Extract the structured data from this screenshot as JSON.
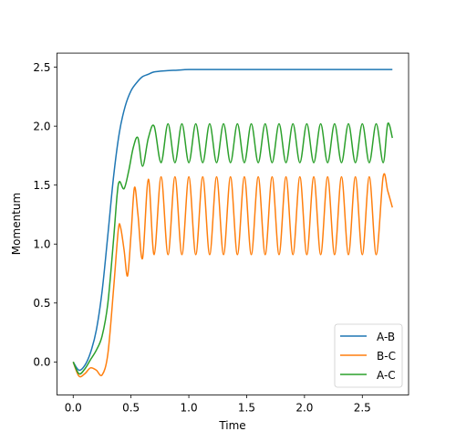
{
  "chart_data": {
    "type": "line",
    "title": "",
    "xlabel": "Time",
    "ylabel": "Momentum",
    "xlim": [
      -0.14,
      2.9
    ],
    "ylim": [
      -0.28,
      2.62
    ],
    "xticks": [
      "0.0",
      "0.5",
      "1.0",
      "1.5",
      "2.0",
      "2.5"
    ],
    "yticks": [
      "0.0",
      "0.5",
      "1.0",
      "1.5",
      "2.0",
      "2.5"
    ],
    "grid": false,
    "legend_position": "lower-right",
    "series": [
      {
        "name": "A-B",
        "color": "#1f77b4",
        "x": [
          0,
          0.05,
          0.1,
          0.15,
          0.2,
          0.25,
          0.3,
          0.35,
          0.4,
          0.45,
          0.5,
          0.55,
          0.6,
          0.65,
          0.7,
          0.8,
          0.9,
          1.0,
          1.2,
          1.5,
          2.0,
          2.5,
          2.76
        ],
        "y": [
          0.0,
          -0.07,
          -0.03,
          0.08,
          0.27,
          0.6,
          1.08,
          1.58,
          1.95,
          2.17,
          2.3,
          2.37,
          2.42,
          2.44,
          2.46,
          2.47,
          2.475,
          2.48,
          2.48,
          2.48,
          2.48,
          2.48,
          2.48
        ]
      },
      {
        "name": "B-C",
        "color": "#ff7f0e",
        "oscillation": {
          "center": 1.24,
          "amplitude": 0.33,
          "period": 0.117,
          "start": 0.35,
          "tail_end": 1.31
        },
        "x": [
          0,
          0.05,
          0.1,
          0.15,
          0.2,
          0.25,
          0.3,
          0.35,
          0.39,
          0.41,
          0.44,
          0.47,
          0.5,
          0.53,
          0.56,
          0.6,
          0.65,
          0.7,
          0.76,
          0.82,
          0.88,
          0.94,
          1.0,
          1.06,
          1.12,
          1.18,
          1.24,
          1.3,
          1.36,
          1.42,
          1.48,
          1.54,
          1.6,
          1.66,
          1.72,
          1.78,
          1.84,
          1.9,
          1.96,
          2.02,
          2.08,
          2.14,
          2.2,
          2.26,
          2.32,
          2.38,
          2.44,
          2.5,
          2.56,
          2.62,
          2.68,
          2.72,
          2.76
        ],
        "y": [
          0.0,
          -0.12,
          -0.1,
          -0.05,
          -0.07,
          -0.11,
          0.07,
          0.63,
          1.12,
          1.14,
          0.95,
          0.73,
          1.08,
          1.48,
          1.25,
          0.88,
          1.55,
          0.91,
          1.57,
          0.91,
          1.57,
          0.91,
          1.57,
          0.91,
          1.57,
          0.91,
          1.57,
          0.91,
          1.57,
          0.91,
          1.57,
          0.91,
          1.57,
          0.91,
          1.57,
          0.91,
          1.57,
          0.91,
          1.57,
          0.91,
          1.57,
          0.91,
          1.57,
          0.91,
          1.57,
          0.91,
          1.57,
          0.91,
          1.57,
          0.91,
          1.57,
          1.45,
          1.31
        ]
      },
      {
        "name": "A-C",
        "color": "#2ca02c",
        "x": [
          0,
          0.05,
          0.1,
          0.15,
          0.2,
          0.25,
          0.3,
          0.35,
          0.38,
          0.4,
          0.44,
          0.48,
          0.52,
          0.56,
          0.6,
          0.65,
          0.7,
          0.76,
          0.82,
          0.88,
          0.94,
          1.0,
          1.06,
          1.12,
          1.18,
          1.24,
          1.3,
          1.36,
          1.42,
          1.48,
          1.54,
          1.6,
          1.66,
          1.72,
          1.78,
          1.84,
          1.9,
          1.96,
          2.02,
          2.08,
          2.14,
          2.2,
          2.26,
          2.32,
          2.38,
          2.44,
          2.5,
          2.56,
          2.62,
          2.68,
          2.72,
          2.76
        ],
        "y": [
          0.0,
          -0.1,
          -0.06,
          0.02,
          0.1,
          0.22,
          0.5,
          1.05,
          1.42,
          1.53,
          1.47,
          1.62,
          1.82,
          1.9,
          1.66,
          1.9,
          2.0,
          1.69,
          2.02,
          1.69,
          2.02,
          1.69,
          2.02,
          1.69,
          2.02,
          1.69,
          2.02,
          1.69,
          2.02,
          1.69,
          2.02,
          1.69,
          2.02,
          1.69,
          2.02,
          1.69,
          2.02,
          1.69,
          2.02,
          1.69,
          2.02,
          1.69,
          2.02,
          1.69,
          2.02,
          1.69,
          2.02,
          1.69,
          2.02,
          1.69,
          2.02,
          1.9
        ]
      }
    ]
  }
}
